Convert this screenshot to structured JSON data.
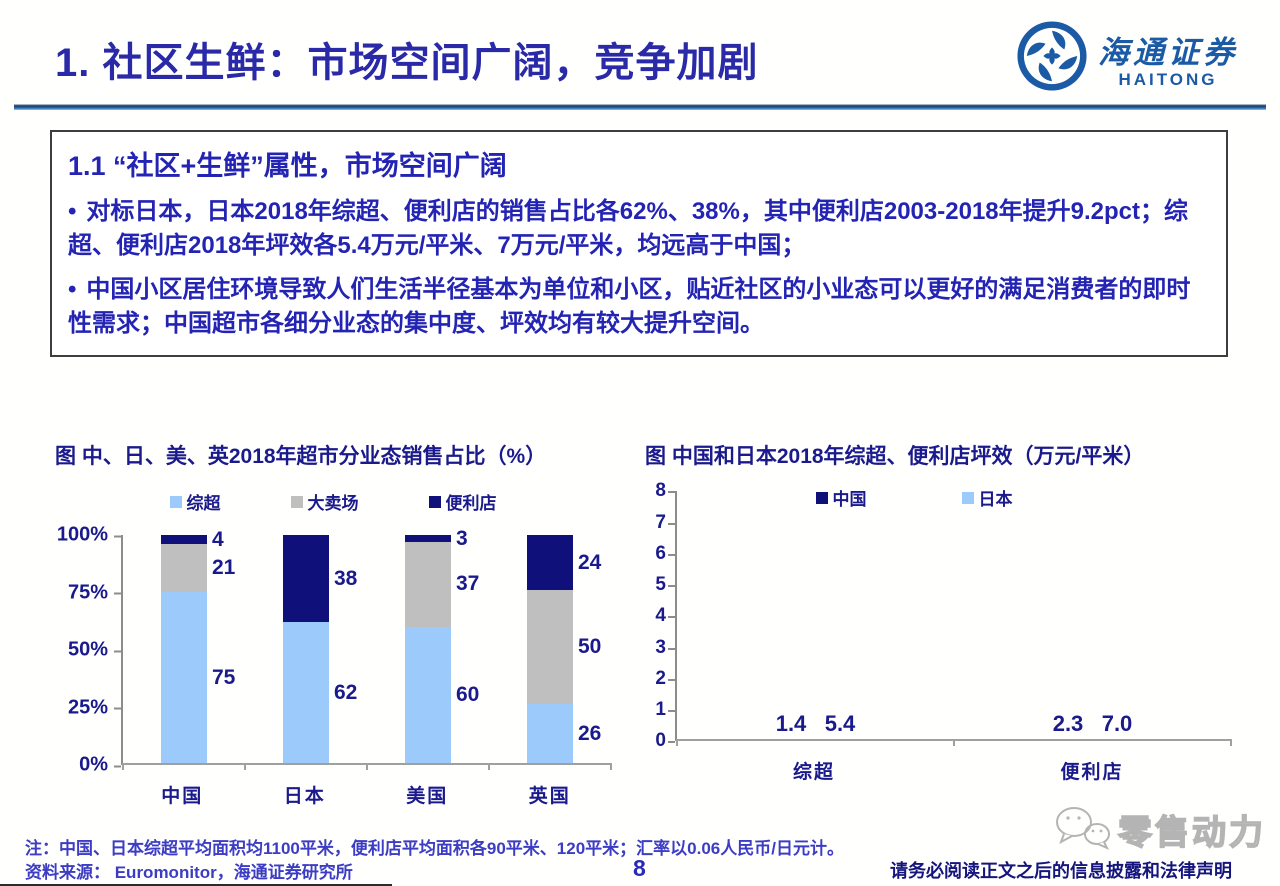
{
  "header": {
    "title": "1. 社区生鲜：市场空间广阔，竞争加剧",
    "logo": {
      "name": "海通证券",
      "sub": "HAITONG"
    }
  },
  "box": {
    "heading": "1.1 “社区+生鲜”属性，市场空间广阔",
    "bullet_marker": "•",
    "bullets": [
      "对标日本，日本2018年综超、便利店的销售占比各62%、38%，其中便利店2003-2018年提升9.2pct；综超、便利店2018年坪效各5.4万元/平米、7万元/平米，均远高于中国；",
      "中国小区居住环境导致人们生活半径基本为单位和小区，贴近社区的小业态可以更好的满足消费者的即时性需求；中国超市各细分业态的集中度、坪效均有较大提升空间。"
    ]
  },
  "chart_data": [
    {
      "type": "bar",
      "subtype": "stacked",
      "title": "图  中、日、美、英2018年超市分业态销售占比（%）",
      "categories": [
        "中国",
        "日本",
        "美国",
        "英国"
      ],
      "series": [
        {
          "name": "综超",
          "color": "#9CCAFA",
          "values": [
            75,
            62,
            60,
            26
          ]
        },
        {
          "name": "大卖场",
          "color": "#BFBFBF",
          "values": [
            21,
            0,
            37,
            50
          ]
        },
        {
          "name": "便利店",
          "color": "#10107A",
          "values": [
            4,
            38,
            3,
            24
          ]
        }
      ],
      "y_tick_labels": [
        "100%",
        "75%",
        "50%",
        "25%",
        "0%"
      ],
      "ylim": [
        0,
        100
      ],
      "legend_position": "top",
      "grid": false
    },
    {
      "type": "bar",
      "subtype": "grouped",
      "title": "图  中国和日本2018年综超、便利店坪效（万元/平米）",
      "categories": [
        "综超",
        "便利店"
      ],
      "series": [
        {
          "name": "中国",
          "color": "#10107A",
          "values": [
            1.4,
            2.3
          ],
          "labels": [
            "1.4",
            "2.3"
          ]
        },
        {
          "name": "日本",
          "color": "#9CCAFA",
          "values": [
            5.4,
            7.0
          ],
          "labels": [
            "5.4",
            "7.0"
          ]
        }
      ],
      "y_tick_labels": [
        "8",
        "7",
        "6",
        "5",
        "4",
        "3",
        "2",
        "1",
        "0"
      ],
      "ylim": [
        0,
        8
      ],
      "legend_position": "top-inside",
      "grid": false
    }
  ],
  "footer": {
    "note": "注：中国、日本综超平均面积均1100平米，便利店平均面积各90平米、120平米；汇率以0.06人民币/日元计。",
    "source": "资料来源： Euromonitor，海通证券研究所",
    "page_number": "8",
    "disclaimer": "请务必阅读正文之后的信息披露和法律声明",
    "watermark": "零售动力"
  },
  "colors": {
    "title_blue": "#2A2AA8",
    "body_blue": "#2424B4",
    "chart_navy": "#1A1A8C",
    "bar_navy": "#10107A",
    "bar_lightblue": "#9CCAFA",
    "bar_gray": "#BFBFBF",
    "brand_blue": "#1B5AA5",
    "rule_blue": "#2E75B6",
    "note_blue": "#3C3CC4"
  }
}
